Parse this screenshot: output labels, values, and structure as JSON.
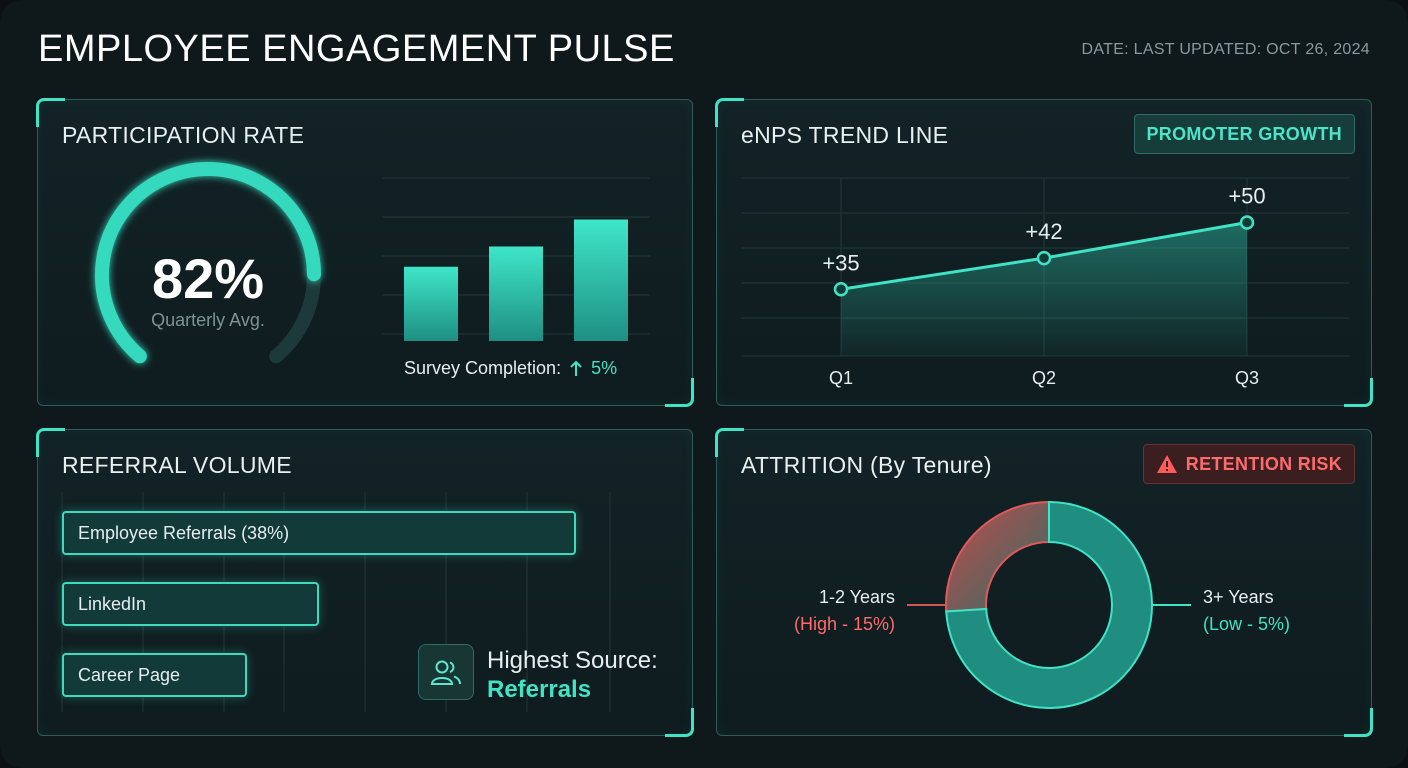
{
  "header": {
    "title": "EMPLOYEE ENGAGEMENT PULSE",
    "date": "DATE: LAST UPDATED: OCT 26, 2024"
  },
  "colors": {
    "accent": "#3fe3c6",
    "danger": "#ff6b6b",
    "background": "#0f181b"
  },
  "participation": {
    "title": "PARTICIPATION RATE",
    "gauge_value": "82%",
    "gauge_fraction": 0.82,
    "gauge_label": "Quarterly Avg.",
    "bars": [
      0.55,
      0.7,
      0.9
    ],
    "completion_label": "Survey Completion:",
    "completion_icon": "arrow-up-icon",
    "completion_value": "5%"
  },
  "enps": {
    "title": "eNPS TREND LINE",
    "tag": "PROMOTER GROWTH"
  },
  "referral": {
    "title": "REFERRAL VOLUME",
    "items": [
      {
        "label": "Employee Referrals (38%)",
        "share": 1.0
      },
      {
        "label": "LinkedIn",
        "share": 0.5
      },
      {
        "label": "Career Page",
        "share": 0.36
      }
    ],
    "source_icon": "users-icon",
    "source_label": "Highest Source:",
    "source_value": "Referrals"
  },
  "attrition": {
    "title": "ATTRITION (By Tenure)",
    "title_display": "ATTRITION (By Tenure)",
    "tag": "RETENTION RISK",
    "tag_icon": "warning-icon",
    "left_label": "1-2 Years",
    "left_sub": "(High - 15%)",
    "right_label": "3+ Years",
    "right_sub": "(Low - 5%)"
  },
  "chart_data": [
    {
      "type": "line",
      "title": "eNPS TREND LINE",
      "categories": [
        "Q1",
        "Q2",
        "Q3"
      ],
      "series": [
        {
          "values": [
            35,
            42,
            50
          ]
        }
      ],
      "data_labels": [
        "+35",
        "+42",
        "+50"
      ],
      "ylim": [
        20,
        60
      ],
      "grid": true
    },
    {
      "type": "pie",
      "title": "ATTRITION (By Tenure)",
      "categories": [
        "1-2 Years",
        "3+ Years"
      ],
      "values": [
        0.26,
        0.74
      ],
      "labels": [
        "(High - 15%)",
        "(Low - 5%)"
      ]
    }
  ]
}
